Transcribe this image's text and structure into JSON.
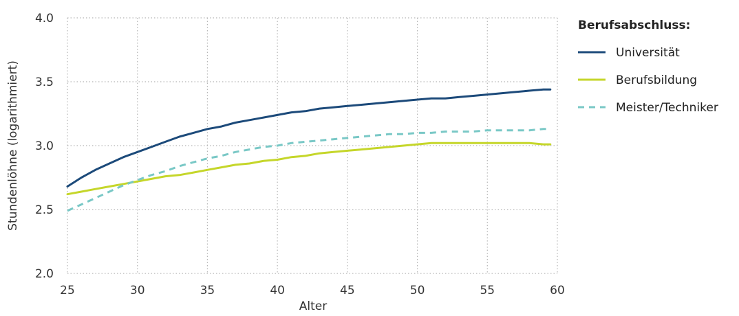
{
  "chart_data": {
    "type": "line",
    "xlabel": "Alter",
    "ylabel": "Stundenlöhne (logarithmiert)",
    "xlim": [
      25,
      60
    ],
    "ylim": [
      2.0,
      4.0
    ],
    "x_ticks": [
      "25",
      "30",
      "35",
      "40",
      "45",
      "50",
      "55",
      "60"
    ],
    "y_ticks": [
      "2.0",
      "2.5",
      "3.0",
      "3.5",
      "4.0"
    ],
    "grid": "dotted",
    "legend": {
      "title": "Berufsabschluss:",
      "placement": "right"
    },
    "series": [
      {
        "name": "Universität",
        "color": "#1c4a7a",
        "dash": "solid",
        "x": [
          25,
          26,
          27,
          28,
          29,
          30,
          31,
          32,
          33,
          34,
          35,
          36,
          37,
          38,
          39,
          40,
          41,
          42,
          43,
          44,
          45,
          46,
          47,
          48,
          49,
          50,
          51,
          52,
          53,
          54,
          55,
          56,
          57,
          58,
          59,
          59.5
        ],
        "y": [
          2.68,
          2.75,
          2.81,
          2.86,
          2.91,
          2.95,
          2.99,
          3.03,
          3.07,
          3.1,
          3.13,
          3.15,
          3.18,
          3.2,
          3.22,
          3.24,
          3.26,
          3.27,
          3.29,
          3.3,
          3.31,
          3.32,
          3.33,
          3.34,
          3.35,
          3.36,
          3.37,
          3.37,
          3.38,
          3.39,
          3.4,
          3.41,
          3.42,
          3.43,
          3.44,
          3.44
        ]
      },
      {
        "name": "Berufsbildung",
        "color": "#c5d62a",
        "dash": "solid",
        "x": [
          25,
          26,
          27,
          28,
          29,
          30,
          31,
          32,
          33,
          34,
          35,
          36,
          37,
          38,
          39,
          40,
          41,
          42,
          43,
          44,
          45,
          46,
          47,
          48,
          49,
          50,
          51,
          52,
          53,
          54,
          55,
          56,
          57,
          58,
          59,
          59.5
        ],
        "y": [
          2.62,
          2.64,
          2.66,
          2.68,
          2.7,
          2.72,
          2.74,
          2.76,
          2.77,
          2.79,
          2.81,
          2.83,
          2.85,
          2.86,
          2.88,
          2.89,
          2.91,
          2.92,
          2.94,
          2.95,
          2.96,
          2.97,
          2.98,
          2.99,
          3.0,
          3.01,
          3.02,
          3.02,
          3.02,
          3.02,
          3.02,
          3.02,
          3.02,
          3.02,
          3.01,
          3.01
        ]
      },
      {
        "name": "Meister/Techniker",
        "color": "#79c8c6",
        "dash": "dashed",
        "x": [
          25,
          26,
          27,
          28,
          29,
          30,
          31,
          32,
          33,
          34,
          35,
          36,
          37,
          38,
          39,
          40,
          41,
          42,
          43,
          44,
          45,
          46,
          47,
          48,
          49,
          50,
          51,
          52,
          53,
          54,
          55,
          56,
          57,
          58,
          59,
          59.5
        ],
        "y": [
          2.49,
          2.54,
          2.59,
          2.64,
          2.69,
          2.73,
          2.77,
          2.8,
          2.84,
          2.87,
          2.9,
          2.92,
          2.95,
          2.97,
          2.99,
          3.0,
          3.02,
          3.03,
          3.04,
          3.05,
          3.06,
          3.07,
          3.08,
          3.09,
          3.09,
          3.1,
          3.1,
          3.11,
          3.11,
          3.11,
          3.12,
          3.12,
          3.12,
          3.12,
          3.13,
          3.13
        ]
      }
    ]
  }
}
